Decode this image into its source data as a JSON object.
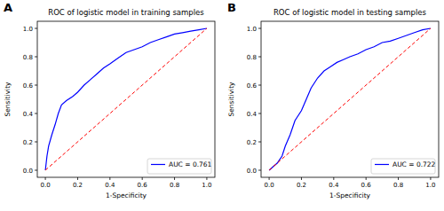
{
  "chart_data": [
    {
      "type": "line",
      "panel_label": "A",
      "title": "ROC of logistic model in training samples",
      "x_label": "1-Specificity",
      "y_label": "Sensitivity",
      "xlim": [
        -0.05,
        1.05
      ],
      "ylim": [
        -0.05,
        1.05
      ],
      "xticks": [
        {
          "value": 0,
          "label": "0.0"
        },
        0.2,
        0.4,
        0.6,
        0.8,
        {
          "value": 1,
          "label": "1.0"
        }
      ],
      "yticks": [
        {
          "value": 0,
          "label": "0.0"
        },
        0.2,
        0.4,
        0.6,
        0.8,
        {
          "value": 1,
          "label": "1.0"
        }
      ],
      "legend": "lower right",
      "series": [
        {
          "name": "AUC = 0.761",
          "color": "#0000ff",
          "line_style": "solid",
          "x": [
            0,
            0.01,
            0.02,
            0.04,
            0.06,
            0.08,
            0.1,
            0.13,
            0.17,
            0.2,
            0.24,
            0.28,
            0.32,
            0.36,
            0.4,
            0.45,
            0.5,
            0.55,
            0.6,
            0.65,
            0.7,
            0.75,
            0.8,
            0.85,
            0.9,
            0.95,
            1
          ],
          "values": [
            0,
            0.1,
            0.17,
            0.25,
            0.32,
            0.4,
            0.46,
            0.49,
            0.52,
            0.55,
            0.6,
            0.64,
            0.68,
            0.72,
            0.75,
            0.79,
            0.83,
            0.85,
            0.87,
            0.9,
            0.92,
            0.94,
            0.96,
            0.97,
            0.98,
            0.99,
            1
          ]
        },
        {
          "color": "#ff0000",
          "line_style": "dashed",
          "x": [
            0,
            1
          ],
          "values": [
            0,
            1
          ]
        }
      ]
    },
    {
      "type": "line",
      "panel_label": "B",
      "title": "ROC of logistic model in testing samples",
      "x_label": "1-Specificity",
      "y_label": "Sensitivity",
      "xlim": [
        -0.05,
        1.05
      ],
      "ylim": [
        -0.05,
        1.05
      ],
      "xticks": [
        {
          "value": 0,
          "label": "0.0"
        },
        0.2,
        0.4,
        0.6,
        0.8,
        {
          "value": 1,
          "label": "1.0"
        }
      ],
      "yticks": [
        {
          "value": 0,
          "label": "0.0"
        },
        0.2,
        0.4,
        0.6,
        0.8,
        {
          "value": 1,
          "label": "1.0"
        }
      ],
      "legend": "lower right",
      "series": [
        {
          "name": "AUC = 0.722",
          "color": "#0000ff",
          "line_style": "solid",
          "x": [
            0,
            0.02,
            0.05,
            0.08,
            0.1,
            0.13,
            0.16,
            0.2,
            0.23,
            0.26,
            0.3,
            0.34,
            0.38,
            0.42,
            0.46,
            0.5,
            0.55,
            0.6,
            0.65,
            0.7,
            0.75,
            0.8,
            0.85,
            0.9,
            0.95,
            1
          ],
          "values": [
            0,
            0.02,
            0.05,
            0.1,
            0.17,
            0.25,
            0.35,
            0.42,
            0.5,
            0.58,
            0.65,
            0.7,
            0.73,
            0.76,
            0.78,
            0.8,
            0.82,
            0.85,
            0.87,
            0.9,
            0.91,
            0.93,
            0.95,
            0.97,
            0.99,
            1
          ]
        },
        {
          "color": "#ff0000",
          "line_style": "dashed",
          "x": [
            0,
            1
          ],
          "values": [
            0,
            1
          ]
        }
      ]
    }
  ]
}
